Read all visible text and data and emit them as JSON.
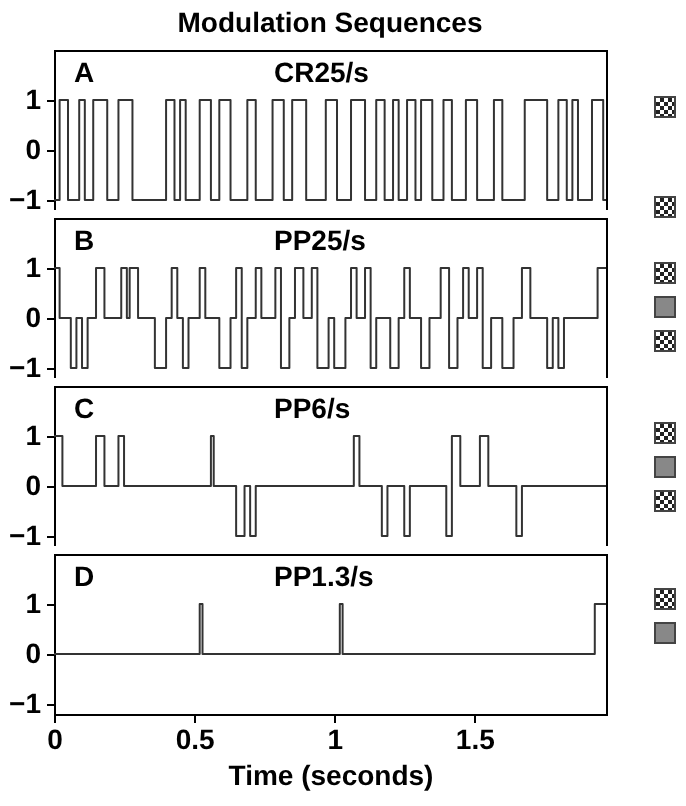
{
  "chart_data": [
    {
      "type": "step",
      "title": "Modulation Sequences",
      "annotations": [
        "A",
        "CR25/s"
      ],
      "xlim": [
        0,
        1.97
      ],
      "xticks": [
        0,
        0.5,
        1,
        1.5
      ],
      "ylim": [
        -1.2,
        2.0
      ],
      "yticks": [
        -1,
        0,
        1
      ],
      "tick_labels": "y",
      "series": [
        {
          "color": "#333333",
          "x": [
            0,
            0.02,
            0.05,
            0.09,
            0.11,
            0.14,
            0.19,
            0.23,
            0.28,
            0.4,
            0.43,
            0.45,
            0.47,
            0.52,
            0.56,
            0.59,
            0.63,
            0.69,
            0.72,
            0.78,
            0.82,
            0.85,
            0.9,
            0.97,
            1.01,
            1.06,
            1.11,
            1.15,
            1.18,
            1.21,
            1.23,
            1.26,
            1.29,
            1.31,
            1.35,
            1.39,
            1.42,
            1.47,
            1.51,
            1.57,
            1.6,
            1.68,
            1.76,
            1.8,
            1.83,
            1.85,
            1.87,
            1.92,
            1.96,
            1.97
          ],
          "values": [
            -1,
            1,
            -1,
            1,
            -1,
            1,
            -1,
            1,
            -1,
            1,
            -1,
            1,
            -1,
            1,
            -1,
            1,
            -1,
            1,
            -1,
            1,
            -1,
            1,
            -1,
            1,
            -1,
            1,
            -1,
            1,
            -1,
            1,
            -1,
            1,
            -1,
            1,
            -1,
            1,
            -1,
            1,
            -1,
            1,
            -1,
            1,
            -1,
            1,
            -1,
            1,
            -1,
            1,
            -1,
            -1
          ]
        }
      ]
    },
    {
      "type": "step",
      "annotations": [
        "B",
        "PP25/s"
      ],
      "xlim": [
        0,
        1.97
      ],
      "xticks": [
        0,
        0.5,
        1,
        1.5
      ],
      "ylim": [
        -1.2,
        2.0
      ],
      "yticks": [
        -1,
        0,
        1
      ],
      "tick_labels": "y",
      "series": [
        {
          "color": "#333333",
          "x": [
            0,
            0.02,
            0.06,
            0.08,
            0.1,
            0.12,
            0.15,
            0.18,
            0.24,
            0.26,
            0.27,
            0.3,
            0.36,
            0.4,
            0.42,
            0.44,
            0.46,
            0.48,
            0.52,
            0.54,
            0.59,
            0.63,
            0.65,
            0.67,
            0.69,
            0.72,
            0.74,
            0.79,
            0.81,
            0.84,
            0.86,
            0.89,
            0.92,
            0.94,
            0.98,
            1.0,
            1.04,
            1.06,
            1.08,
            1.11,
            1.13,
            1.15,
            1.2,
            1.23,
            1.25,
            1.27,
            1.31,
            1.34,
            1.38,
            1.41,
            1.44,
            1.46,
            1.48,
            1.51,
            1.53,
            1.56,
            1.6,
            1.64,
            1.67,
            1.7,
            1.76,
            1.78,
            1.8,
            1.82,
            1.94,
            1.97
          ],
          "values": [
            1,
            0,
            -1,
            0,
            -1,
            0,
            1,
            0,
            1,
            0,
            1,
            0,
            -1,
            0,
            1,
            0,
            -1,
            0,
            1,
            0,
            -1,
            0,
            1,
            -1,
            0,
            1,
            0,
            1,
            -1,
            0,
            1,
            0,
            1,
            -1,
            0,
            -1,
            0,
            1,
            0,
            1,
            -1,
            0,
            -1,
            0,
            1,
            0,
            -1,
            0,
            1,
            -1,
            0,
            1,
            0,
            1,
            -1,
            0,
            -1,
            0,
            1,
            0,
            -1,
            0,
            -1,
            0,
            1,
            1
          ]
        }
      ]
    },
    {
      "type": "step",
      "annotations": [
        "C",
        "PP6/s"
      ],
      "xlim": [
        0,
        1.97
      ],
      "xticks": [
        0,
        0.5,
        1,
        1.5
      ],
      "ylim": [
        -1.2,
        2.0
      ],
      "yticks": [
        -1,
        0,
        1
      ],
      "tick_labels": "y",
      "series": [
        {
          "color": "#333333",
          "x": [
            0,
            0.03,
            0.15,
            0.18,
            0.23,
            0.25,
            0.56,
            0.57,
            0.65,
            0.68,
            0.7,
            0.72,
            1.07,
            1.09,
            1.17,
            1.19,
            1.25,
            1.27,
            1.4,
            1.42,
            1.45,
            1.52,
            1.55,
            1.65,
            1.67,
            1.97
          ],
          "values": [
            1,
            0,
            1,
            0,
            1,
            0,
            1,
            0,
            -1,
            0,
            -1,
            0,
            1,
            0,
            -1,
            0,
            -1,
            0,
            -1,
            1,
            0,
            1,
            0,
            -1,
            0,
            0
          ]
        }
      ]
    },
    {
      "type": "step",
      "annotations": [
        "D",
        "PP1.3/s"
      ],
      "xlabel": "Time (seconds)",
      "xlim": [
        0,
        1.97
      ],
      "xticks": [
        0,
        0.5,
        1,
        1.5
      ],
      "ylim": [
        -1.2,
        2.0
      ],
      "yticks": [
        -1,
        0,
        1
      ],
      "series": [
        {
          "color": "#333333",
          "x": [
            0,
            0.52,
            0.53,
            1.02,
            1.03,
            1.93,
            1.97
          ],
          "values": [
            0,
            1,
            0,
            1,
            0,
            1,
            1
          ]
        }
      ]
    }
  ]
}
